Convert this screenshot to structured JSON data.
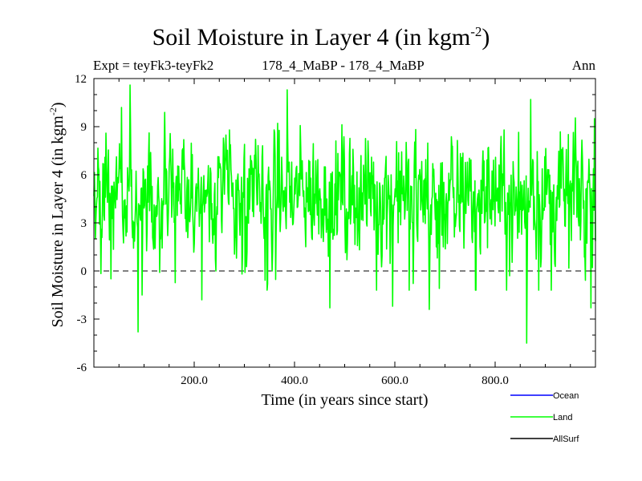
{
  "chart_data": {
    "type": "line",
    "title": "Soil Moisture in Layer 4 (in kgm",
    "title_sup": "-2",
    "title_tail": ")",
    "subtitle_left": "Expt = teyFk3-teyFk2",
    "subtitle_center": "178_4_MaBP - 178_4_MaBP",
    "subtitle_right": "Ann",
    "xlabel": "Time (in years since start)",
    "ylabel": "Soil Moisture in Layer 4 (in kgm",
    "ylabel_sup": "-2",
    "ylabel_tail": ")",
    "xlim": [
      0,
      1000
    ],
    "ylim": [
      -6,
      12
    ],
    "xticks": [
      200,
      400,
      600,
      800
    ],
    "xtick_labels": [
      "200.0",
      "400.0",
      "600.0",
      "800.0"
    ],
    "yticks": [
      -6,
      -3,
      0,
      3,
      6,
      9,
      12
    ],
    "ytick_labels": [
      "-6",
      "-3",
      "0",
      "3",
      "6",
      "9",
      "12"
    ],
    "zero_line": 0,
    "series": [
      {
        "name": "Ocean",
        "color": "#0000ff",
        "values": []
      },
      {
        "name": "Land",
        "color": "#00ff00",
        "summary": {
          "mean": 4.8,
          "min": -4.5,
          "max": 11.6,
          "extremes": [
            [
              3,
              2.0
            ],
            [
              55,
              10.2
            ],
            [
              72,
              11.6
            ],
            [
              88,
              -3.8
            ],
            [
              96,
              -1.5
            ],
            [
              215,
              -1.8
            ],
            [
              270,
              8.8
            ],
            [
              385,
              11.3
            ],
            [
              470,
              -2.3
            ],
            [
              595,
              -2.2
            ],
            [
              668,
              -2.4
            ],
            [
              828,
              -0.3
            ],
            [
              862,
              -4.5
            ],
            [
              870,
              10.7
            ],
            [
              990,
              -2.3
            ],
            [
              997,
              9.5
            ]
          ]
        },
        "values": []
      },
      {
        "name": "AllSurf",
        "color": "#000000",
        "values": []
      }
    ],
    "legend": "bottom-right"
  }
}
